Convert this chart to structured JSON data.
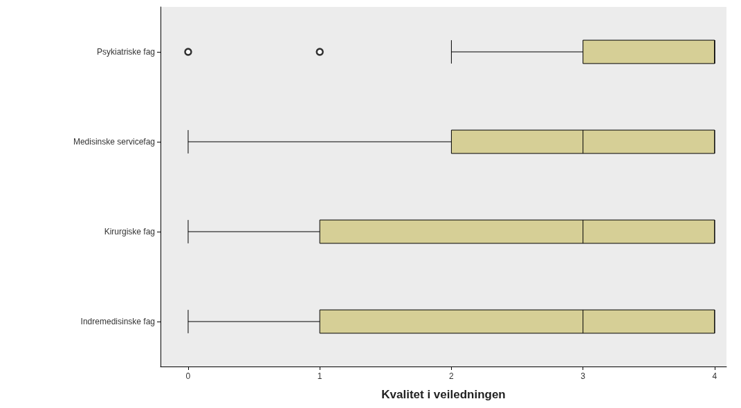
{
  "chart_data": {
    "type": "box",
    "orientation": "horizontal",
    "xlabel": "Kvalitet i veiledningen",
    "categories": [
      "Psykiatriske fag",
      "Medisinske servicefag",
      "Kirurgiske fag",
      "Indremedisinske fag"
    ],
    "color": "#d6cf96",
    "boxes": [
      {
        "low": 2,
        "q1": 3,
        "median": 4,
        "q3": 4,
        "high": 4,
        "outliers": [
          0,
          1
        ]
      },
      {
        "low": 0,
        "q1": 2,
        "median": 3,
        "q3": 4,
        "high": 4
      },
      {
        "low": 0,
        "q1": 1,
        "median": 3,
        "q3": 4,
        "high": 4
      },
      {
        "low": 0,
        "q1": 1,
        "median": 3,
        "q3": 4,
        "high": 4
      }
    ],
    "xlim": [
      -0.21,
      4.09
    ],
    "xticks": [
      0,
      1,
      2,
      3,
      4
    ]
  }
}
